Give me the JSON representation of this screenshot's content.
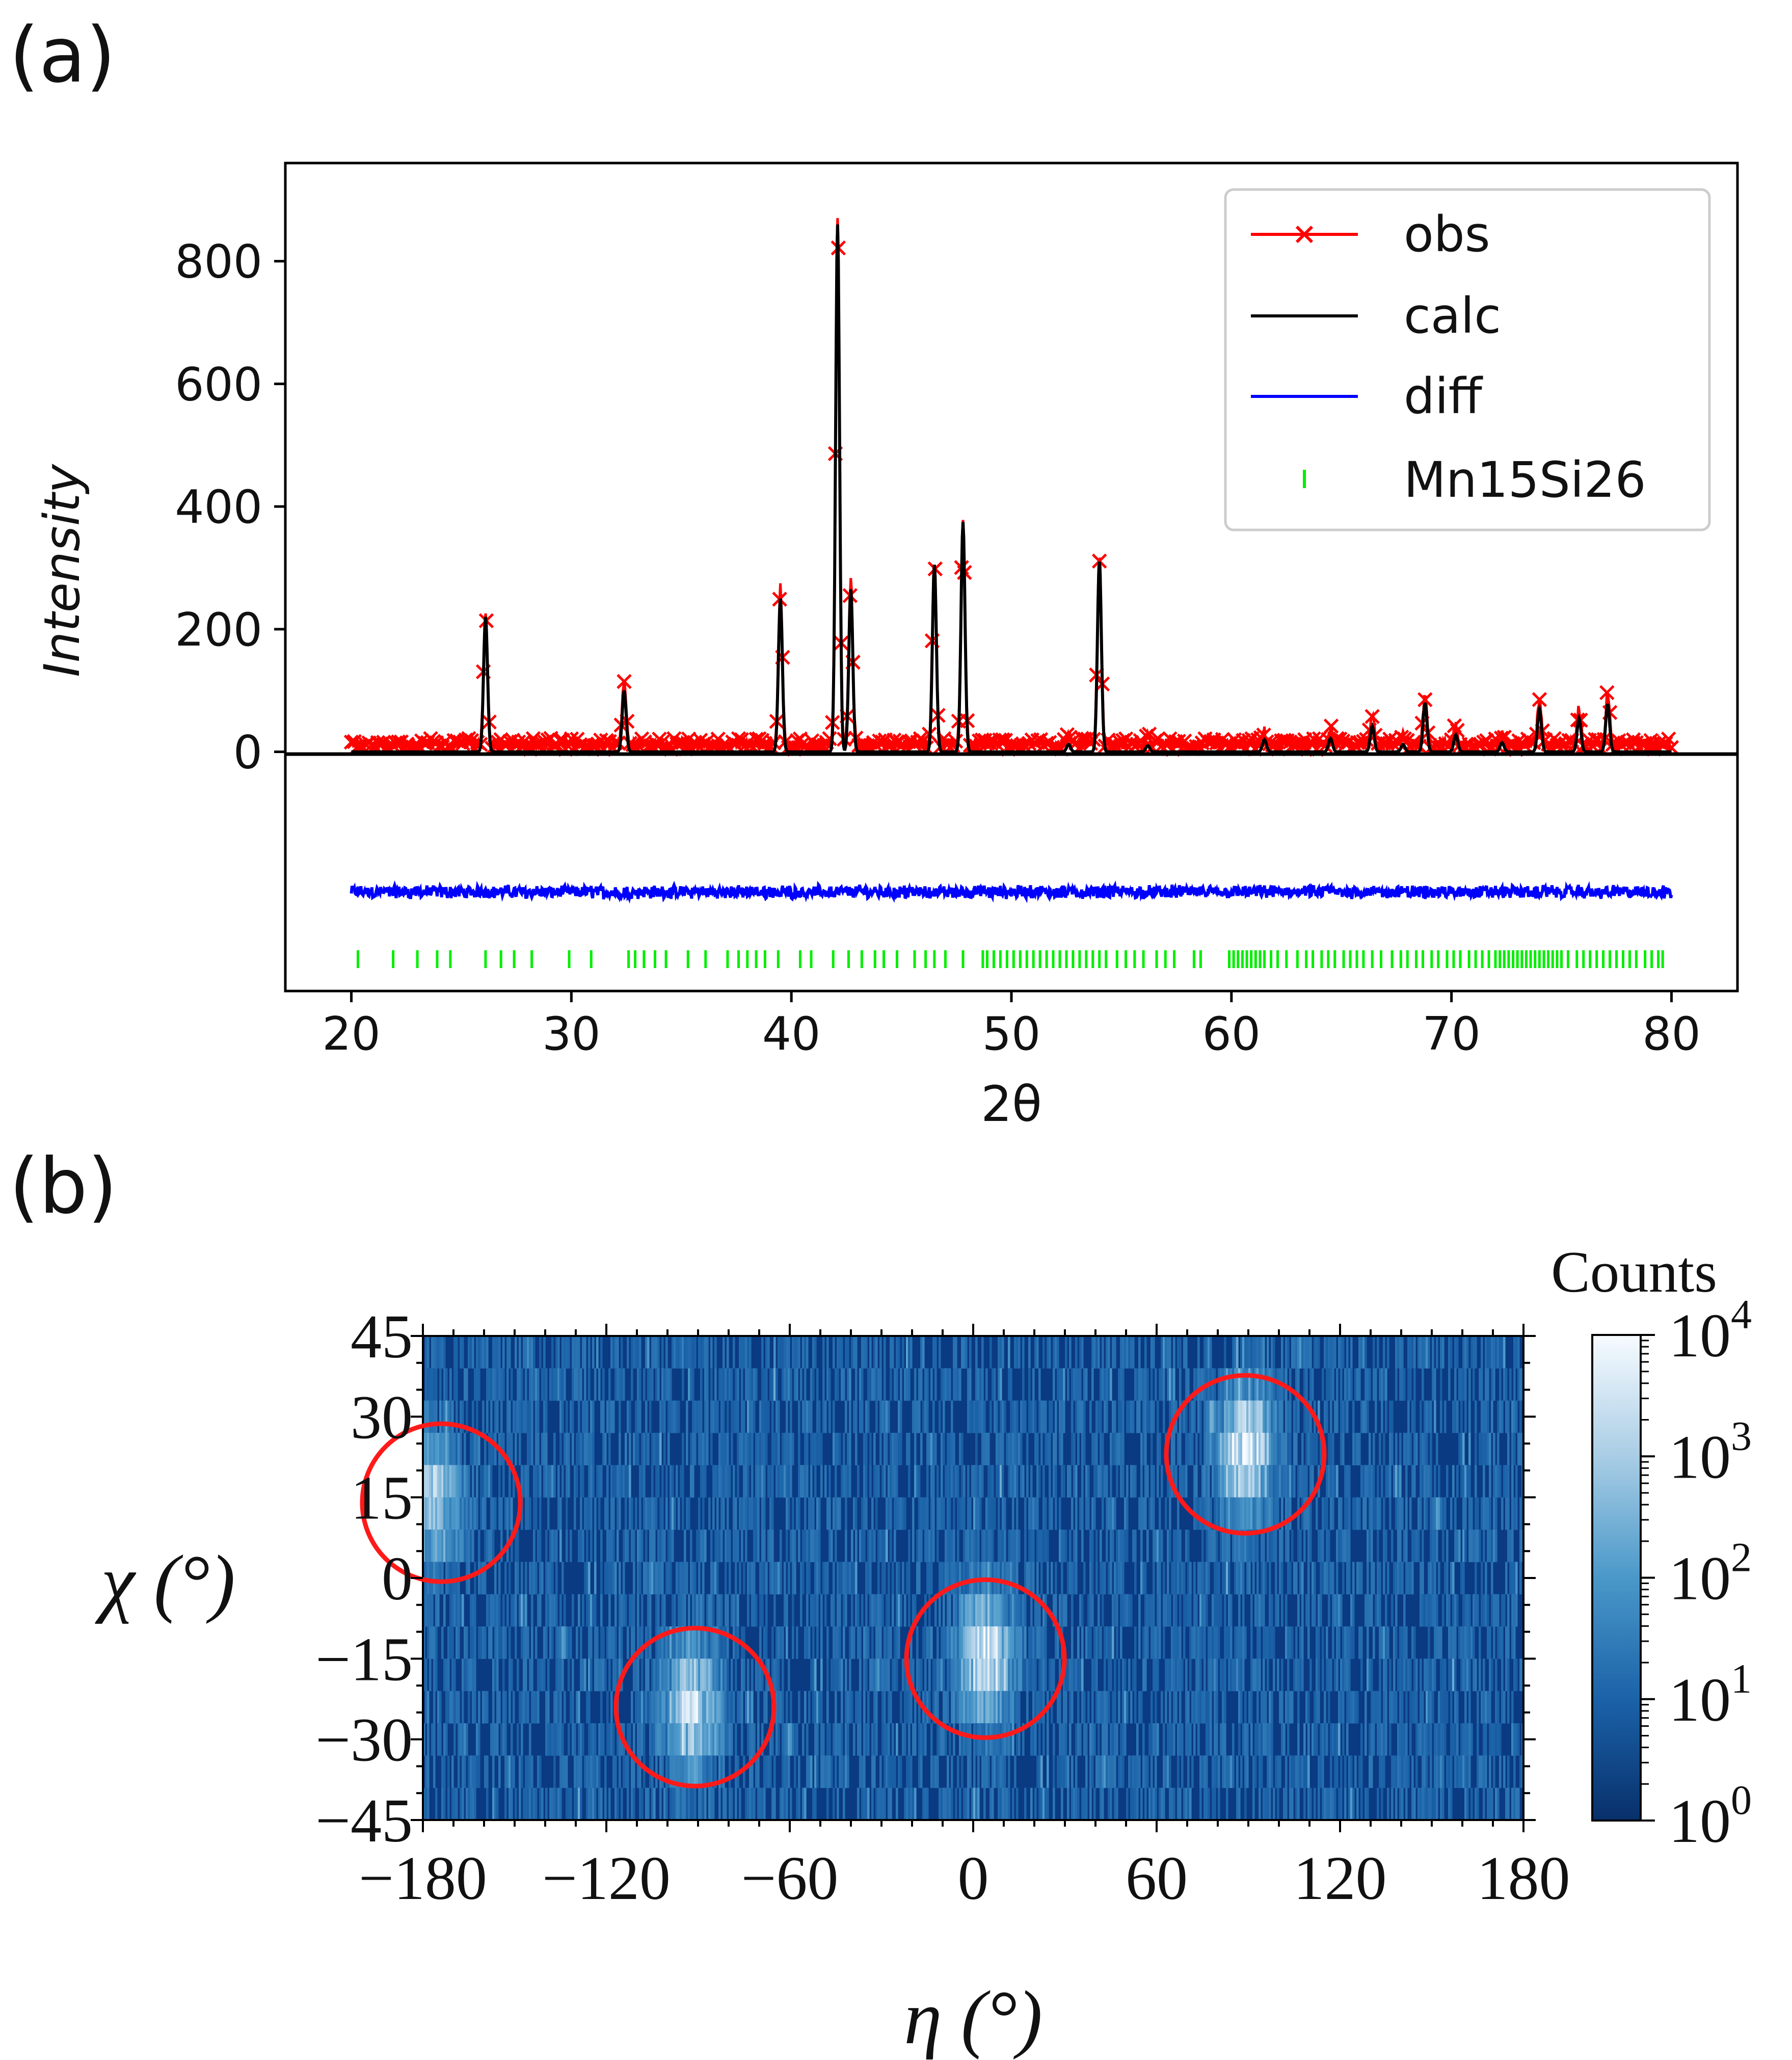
{
  "colors": {
    "obs": "#ff0000",
    "calc": "#000000",
    "diff": "#0000ff",
    "phase": "#00ee00",
    "circle": "#ff1a1a",
    "map_low": "#0a3a82",
    "map_high": "#f4f9ff"
  },
  "chart_data": [
    {
      "panel_label": "(a)",
      "type": "line",
      "title": "",
      "xlabel": "2θ",
      "ylabel": "Intensity",
      "xlim": [
        17,
        83
      ],
      "ylim": [
        -390,
        960
      ],
      "xticks": [
        "20",
        "30",
        "40",
        "50",
        "60",
        "70",
        "80"
      ],
      "yticks": [
        "0",
        "200",
        "400",
        "600",
        "800"
      ],
      "legend": {
        "placement": "top-right",
        "entries": [
          "obs",
          "calc",
          "diff",
          "Mn15Si26"
        ]
      },
      "baseline": 0,
      "background_noise_level": 20,
      "diff_offset": -225,
      "peaks": [
        {
          "x": 26.1,
          "y": 220
        },
        {
          "x": 32.4,
          "y": 100
        },
        {
          "x": 39.5,
          "y": 250
        },
        {
          "x": 42.1,
          "y": 860
        },
        {
          "x": 42.7,
          "y": 265
        },
        {
          "x": 46.5,
          "y": 305
        },
        {
          "x": 47.8,
          "y": 375
        },
        {
          "x": 52.6,
          "y": 12
        },
        {
          "x": 54.0,
          "y": 310
        },
        {
          "x": 56.2,
          "y": 10
        },
        {
          "x": 61.5,
          "y": 20
        },
        {
          "x": 64.5,
          "y": 22
        },
        {
          "x": 66.4,
          "y": 42
        },
        {
          "x": 67.8,
          "y": 12
        },
        {
          "x": 68.8,
          "y": 80
        },
        {
          "x": 70.2,
          "y": 28
        },
        {
          "x": 72.3,
          "y": 15
        },
        {
          "x": 74.0,
          "y": 70
        },
        {
          "x": 75.8,
          "y": 55
        },
        {
          "x": 77.1,
          "y": 78
        }
      ],
      "series": [
        {
          "name": "obs",
          "style": "line with x markers"
        },
        {
          "name": "calc",
          "style": "solid line"
        },
        {
          "name": "diff",
          "style": "solid line, offset below"
        },
        {
          "name": "Mn15Si26",
          "style": "vertical tick marks"
        }
      ],
      "reflections_Mn15Si26": [
        20.3,
        21.9,
        23.0,
        23.9,
        24.5,
        26.1,
        26.8,
        27.4,
        28.2,
        29.9,
        30.9,
        32.6,
        32.9,
        33.3,
        33.8,
        34.3,
        35.3,
        36.1,
        37.1,
        37.6,
        38.0,
        38.4,
        38.8,
        39.4,
        40.4,
        40.9,
        41.9,
        42.6,
        43.2,
        43.8,
        44.2,
        44.8,
        45.6,
        46.1,
        46.5,
        47.0,
        47.8,
        48.7,
        48.9,
        49.2,
        49.5,
        49.8,
        50.1,
        50.4,
        50.7,
        51.0,
        51.3,
        51.6,
        51.9,
        52.2,
        52.5,
        52.8,
        53.1,
        53.4,
        53.7,
        54.0,
        54.3,
        54.8,
        55.2,
        55.6,
        56.0,
        56.6,
        57.0,
        57.4,
        58.3,
        58.6,
        59.9,
        60.1,
        60.3,
        60.5,
        60.7,
        60.9,
        61.1,
        61.3,
        61.5,
        61.8,
        62.1,
        62.5,
        63.0,
        63.4,
        63.7,
        64.1,
        64.4,
        64.7,
        65.1,
        65.4,
        65.7,
        66.0,
        66.4,
        66.8,
        67.3,
        67.7,
        68.0,
        68.4,
        68.7,
        69.1,
        69.4,
        69.8,
        70.1,
        70.4,
        70.8,
        71.1,
        71.4,
        71.7,
        72.0,
        72.2,
        72.4,
        72.6,
        72.8,
        73.0,
        73.2,
        73.4,
        73.6,
        73.8,
        74.0,
        74.2,
        74.4,
        74.6,
        74.8,
        75.0,
        75.3,
        75.7,
        76.0,
        76.3,
        76.6,
        76.9,
        77.2,
        77.5,
        77.8,
        78.1,
        78.4,
        78.8,
        79.1,
        79.4,
        79.6
      ]
    },
    {
      "panel_label": "(b)",
      "type": "heatmap",
      "title": "",
      "xlabel": "η (°)",
      "ylabel": "χ (°)",
      "xlim": [
        -180,
        180
      ],
      "ylim": [
        -45,
        45
      ],
      "xticks": [
        "−180",
        "−120",
        "−60",
        "0",
        "60",
        "120",
        "180"
      ],
      "yticks": [
        "45",
        "30",
        "15",
        "0",
        "−15",
        "−30",
        "−45"
      ],
      "colorbar": {
        "label": "Counts",
        "scale": "log",
        "range": [
          1,
          10000
        ],
        "tick_labels": [
          "10",
          "10",
          "10",
          "10",
          "10"
        ],
        "tick_exponents": [
          "0",
          "1",
          "2",
          "3",
          "4"
        ]
      },
      "hotspots": [
        {
          "eta": -176,
          "chi": 15,
          "peak": 0.7
        },
        {
          "eta": -92,
          "chi": -24,
          "peak": 0.9
        },
        {
          "eta": 4,
          "chi": -15,
          "peak": 1.0
        },
        {
          "eta": 89,
          "chi": 24,
          "peak": 1.0
        }
      ],
      "highlight_circles": [
        {
          "eta": -174,
          "chi": 14
        },
        {
          "eta": -91,
          "chi": -24
        },
        {
          "eta": 4,
          "chi": -15
        },
        {
          "eta": 89,
          "chi": 23
        }
      ]
    }
  ]
}
